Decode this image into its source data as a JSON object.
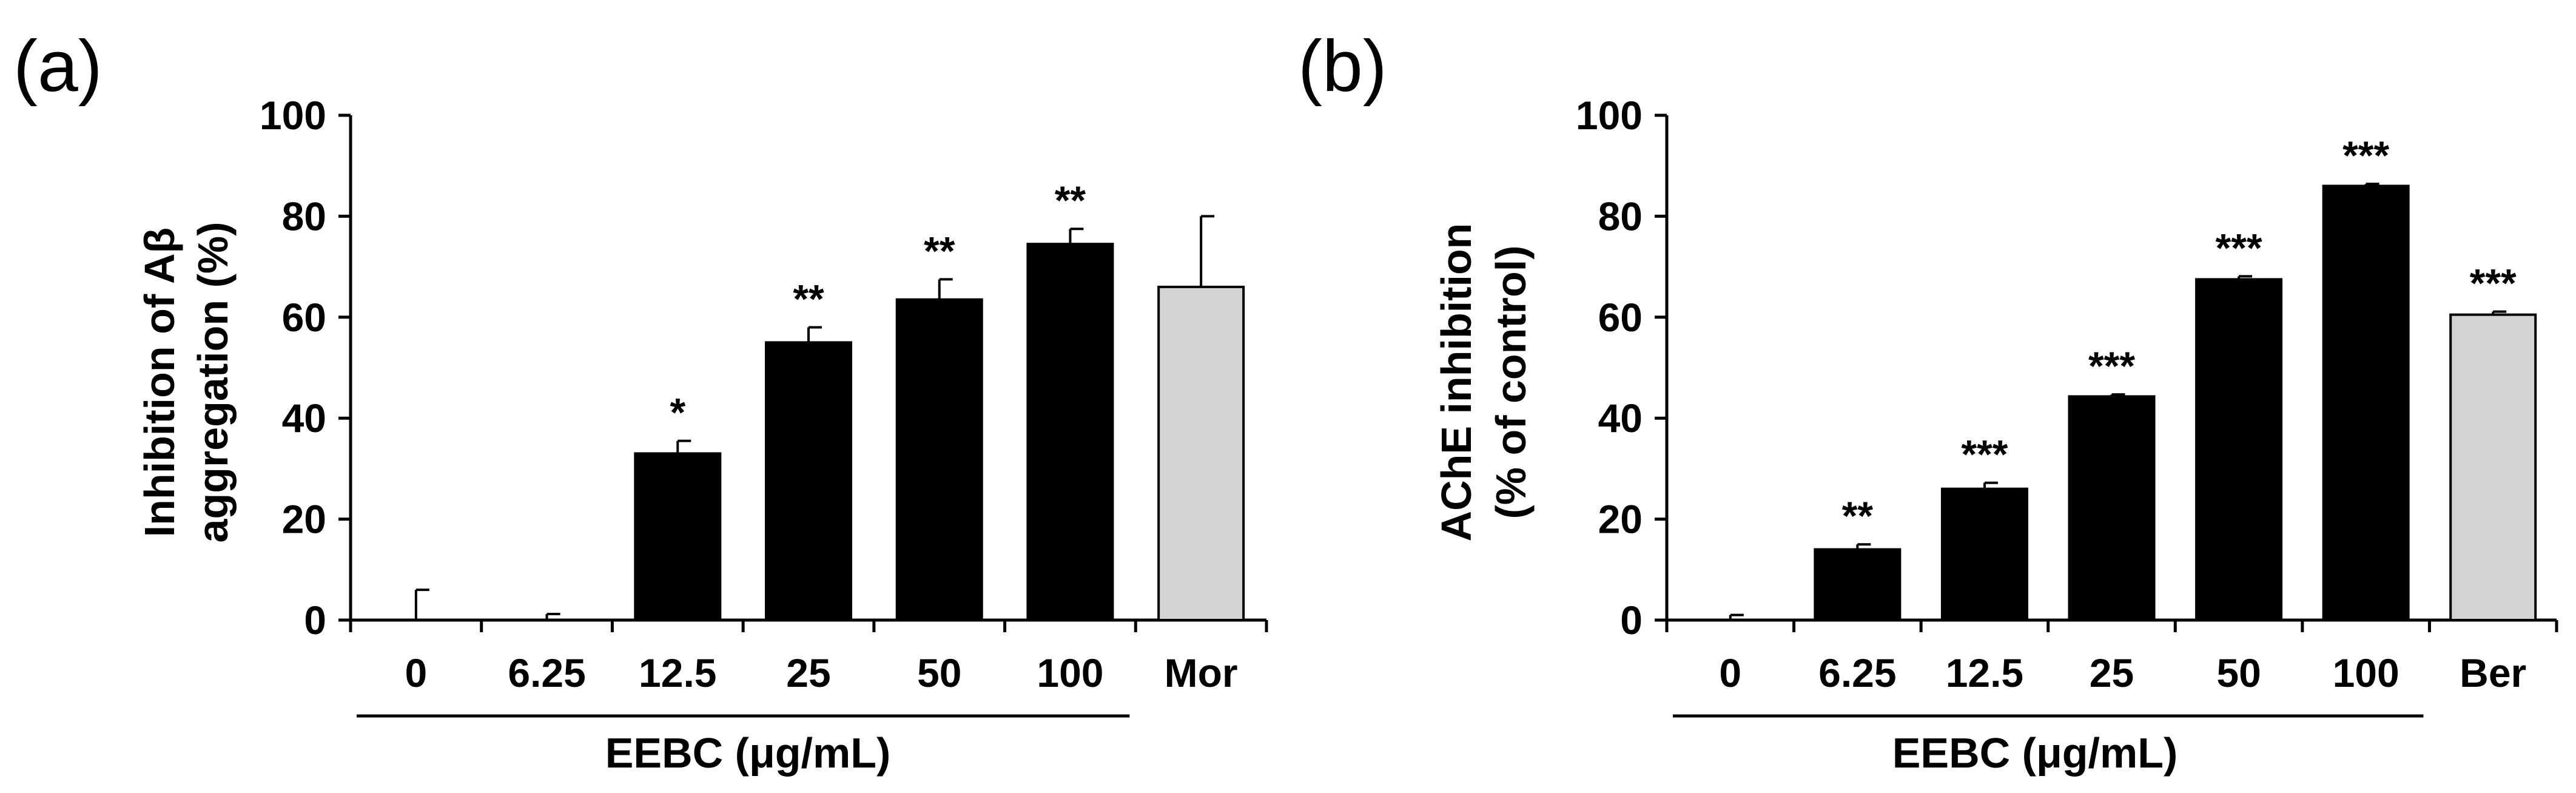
{
  "colors": {
    "treatment": "#000000",
    "control_drug": "#d3d3d3",
    "axis": "#000000"
  },
  "chart_data": [
    {
      "type": "bar",
      "panel_label": "(a)",
      "categories": [
        "0",
        "6.25",
        "12.5",
        "25",
        "50",
        "100",
        "Mor"
      ],
      "values": [
        0,
        0,
        33,
        55,
        63.5,
        74.5,
        66
      ],
      "errors": [
        6,
        1.2,
        2.5,
        3,
        4,
        3,
        14
      ],
      "significance": [
        "",
        "",
        "*",
        "**",
        "**",
        "**",
        ""
      ],
      "group_colors": [
        "treatment",
        "treatment",
        "treatment",
        "treatment",
        "treatment",
        "treatment",
        "control_drug"
      ],
      "yticks": [
        "0",
        "20",
        "40",
        "60",
        "80",
        "100"
      ],
      "ylim": [
        0,
        100
      ],
      "ylabel_line1": "Inhibition of Aβ",
      "ylabel_line2": "aggregation (%)",
      "xgroup_label": "EEBC (μg/mL)",
      "xgroup_span": [
        0,
        5
      ]
    },
    {
      "type": "bar",
      "panel_label": "(b)",
      "categories": [
        "0",
        "6.25",
        "12.5",
        "25",
        "50",
        "100",
        "Ber"
      ],
      "values": [
        0,
        14,
        26,
        44.3,
        67.5,
        86,
        60.5
      ],
      "errors": [
        1,
        1,
        1.2,
        0.4,
        0.6,
        0.4,
        0.6
      ],
      "significance": [
        "",
        "**",
        "***",
        "***",
        "***",
        "***",
        "***"
      ],
      "group_colors": [
        "treatment",
        "treatment",
        "treatment",
        "treatment",
        "treatment",
        "treatment",
        "control_drug"
      ],
      "yticks": [
        "0",
        "20",
        "40",
        "60",
        "80",
        "100"
      ],
      "ylim": [
        0,
        100
      ],
      "ylabel_line1": "AChE inhibition",
      "ylabel_line2": "(% of control)",
      "xgroup_label": "EEBC (μg/mL)",
      "xgroup_span": [
        0,
        5
      ]
    }
  ]
}
